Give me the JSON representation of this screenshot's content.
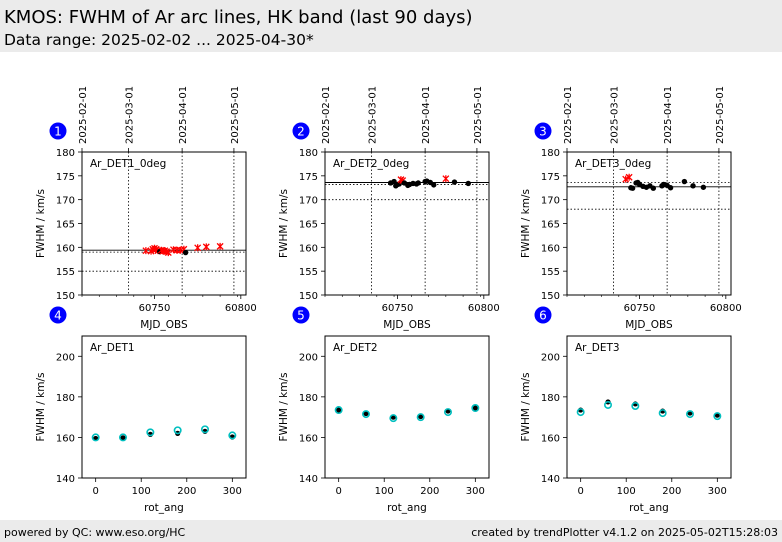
{
  "header": {
    "title": "KMOS: FWHM of Ar arc lines, HK band (last 90 days)",
    "subtitle": "Data range: 2025-02-02 ... 2025-04-30*"
  },
  "footer": {
    "left": "powered by QC: www.eso.org/HC",
    "right": "created by trendPlotter v4.1.2 on 2025-05-02T15:28:03"
  },
  "colors": {
    "header_bg": "#ebebeb",
    "badge": "#0000ff",
    "good_marker": "#000000",
    "outlier_marker": "#ff0000",
    "model_marker": "#00bfbf"
  },
  "chart_data": [
    {
      "type": "scatter",
      "badge": "1",
      "label": "Ar_DET1_0deg",
      "xlabel": "MJD_OBS",
      "ylabel": "FWHM / km/s",
      "xlim": [
        60708,
        60803
      ],
      "ylim": [
        150,
        180
      ],
      "xticks": [
        60750,
        60800
      ],
      "yticks": [
        150,
        155,
        160,
        165,
        170,
        175,
        180
      ],
      "date_ticks": [
        {
          "x": 60708,
          "label": "2025-02-01"
        },
        {
          "x": 60735,
          "label": "2025-03-01"
        },
        {
          "x": 60766,
          "label": "2025-04-01"
        },
        {
          "x": 60796,
          "label": "2025-05-01"
        }
      ],
      "ref_line": 159.4,
      "threshold_lines": [
        159.0,
        155.0
      ],
      "points": [
        {
          "x": 60745,
          "y": 159.3,
          "flag": "outlier"
        },
        {
          "x": 60748,
          "y": 159.2,
          "flag": "outlier"
        },
        {
          "x": 60749,
          "y": 159.6,
          "flag": "outlier"
        },
        {
          "x": 60750,
          "y": 159.8,
          "flag": "outlier"
        },
        {
          "x": 60751,
          "y": 159.6,
          "flag": "outlier"
        },
        {
          "x": 60752,
          "y": 159.3,
          "flag": "outlier"
        },
        {
          "x": 60753,
          "y": 159.1,
          "flag": "good"
        },
        {
          "x": 60754,
          "y": 159.4,
          "flag": "outlier"
        },
        {
          "x": 60755,
          "y": 159.2,
          "flag": "outlier"
        },
        {
          "x": 60756,
          "y": 159.3,
          "flag": "outlier"
        },
        {
          "x": 60757,
          "y": 159.1,
          "flag": "outlier"
        },
        {
          "x": 60758,
          "y": 158.9,
          "flag": "outlier"
        },
        {
          "x": 60761,
          "y": 159.5,
          "flag": "outlier"
        },
        {
          "x": 60763,
          "y": 159.4,
          "flag": "outlier"
        },
        {
          "x": 60765,
          "y": 159.4,
          "flag": "outlier"
        },
        {
          "x": 60767,
          "y": 159.6,
          "flag": "outlier"
        },
        {
          "x": 60768,
          "y": 158.9,
          "flag": "good"
        },
        {
          "x": 60775,
          "y": 159.9,
          "flag": "outlier"
        },
        {
          "x": 60780,
          "y": 160.1,
          "flag": "outlier"
        },
        {
          "x": 60788,
          "y": 160.2,
          "flag": "outlier"
        }
      ]
    },
    {
      "type": "scatter",
      "badge": "2",
      "label": "Ar_DET2_0deg",
      "xlabel": "MJD_OBS",
      "ylabel": "FWHM / km/s",
      "xlim": [
        60708,
        60803
      ],
      "ylim": [
        150,
        180
      ],
      "xticks": [
        60750,
        60800
      ],
      "yticks": [
        150,
        155,
        160,
        165,
        170,
        175,
        180
      ],
      "date_ticks": [
        {
          "x": 60708,
          "label": "2025-02-01"
        },
        {
          "x": 60735,
          "label": "2025-03-01"
        },
        {
          "x": 60766,
          "label": "2025-04-01"
        },
        {
          "x": 60796,
          "label": "2025-05-01"
        }
      ],
      "ref_line": 173.6,
      "threshold_lines": [
        173.2,
        170.0
      ],
      "points": [
        {
          "x": 60746,
          "y": 173.5,
          "flag": "good"
        },
        {
          "x": 60748,
          "y": 173.8,
          "flag": "good"
        },
        {
          "x": 60749,
          "y": 172.9,
          "flag": "good"
        },
        {
          "x": 60750,
          "y": 173.2,
          "flag": "good"
        },
        {
          "x": 60751,
          "y": 173.3,
          "flag": "good"
        },
        {
          "x": 60752,
          "y": 174.2,
          "flag": "outlier"
        },
        {
          "x": 60753,
          "y": 174.0,
          "flag": "outlier"
        },
        {
          "x": 60754,
          "y": 173.5,
          "flag": "good"
        },
        {
          "x": 60756,
          "y": 173.0,
          "flag": "good"
        },
        {
          "x": 60757,
          "y": 173.2,
          "flag": "good"
        },
        {
          "x": 60759,
          "y": 173.4,
          "flag": "good"
        },
        {
          "x": 60761,
          "y": 173.3,
          "flag": "good"
        },
        {
          "x": 60762,
          "y": 173.5,
          "flag": "good"
        },
        {
          "x": 60766,
          "y": 173.8,
          "flag": "good"
        },
        {
          "x": 60767,
          "y": 173.9,
          "flag": "good"
        },
        {
          "x": 60769,
          "y": 173.6,
          "flag": "good"
        },
        {
          "x": 60771,
          "y": 173.1,
          "flag": "good"
        },
        {
          "x": 60778,
          "y": 174.4,
          "flag": "outlier"
        },
        {
          "x": 60783,
          "y": 173.7,
          "flag": "good"
        },
        {
          "x": 60791,
          "y": 173.4,
          "flag": "good"
        }
      ]
    },
    {
      "type": "scatter",
      "badge": "3",
      "label": "Ar_DET3_0deg",
      "xlabel": "MJD_OBS",
      "ylabel": "FWHM / km/s",
      "xlim": [
        60708,
        60803
      ],
      "ylim": [
        150,
        180
      ],
      "xticks": [
        60750,
        60800
      ],
      "yticks": [
        150,
        155,
        160,
        165,
        170,
        175,
        180
      ],
      "date_ticks": [
        {
          "x": 60708,
          "label": "2025-02-01"
        },
        {
          "x": 60735,
          "label": "2025-03-01"
        },
        {
          "x": 60766,
          "label": "2025-04-01"
        },
        {
          "x": 60796,
          "label": "2025-05-01"
        }
      ],
      "ref_line": 172.7,
      "threshold_lines": [
        173.6,
        168.0
      ],
      "points": [
        {
          "x": 60742,
          "y": 174.3,
          "flag": "outlier"
        },
        {
          "x": 60744,
          "y": 174.7,
          "flag": "outlier"
        },
        {
          "x": 60745,
          "y": 172.5,
          "flag": "good"
        },
        {
          "x": 60746,
          "y": 172.4,
          "flag": "good"
        },
        {
          "x": 60748,
          "y": 173.5,
          "flag": "good"
        },
        {
          "x": 60749,
          "y": 173.6,
          "flag": "good"
        },
        {
          "x": 60750,
          "y": 173.2,
          "flag": "good"
        },
        {
          "x": 60752,
          "y": 172.8,
          "flag": "good"
        },
        {
          "x": 60754,
          "y": 172.6,
          "flag": "good"
        },
        {
          "x": 60756,
          "y": 172.9,
          "flag": "good"
        },
        {
          "x": 60758,
          "y": 172.4,
          "flag": "good"
        },
        {
          "x": 60763,
          "y": 172.9,
          "flag": "good"
        },
        {
          "x": 60764,
          "y": 173.2,
          "flag": "good"
        },
        {
          "x": 60766,
          "y": 173.0,
          "flag": "good"
        },
        {
          "x": 60768,
          "y": 172.5,
          "flag": "good"
        },
        {
          "x": 60776,
          "y": 173.8,
          "flag": "good"
        },
        {
          "x": 60781,
          "y": 172.9,
          "flag": "good"
        },
        {
          "x": 60787,
          "y": 172.6,
          "flag": "good"
        }
      ]
    },
    {
      "type": "scatter",
      "badge": "4",
      "label": "Ar_DET1",
      "xlabel": "rot_ang",
      "ylabel": "FWHM / km/s",
      "xlim": [
        -30,
        330
      ],
      "ylim": [
        140,
        210
      ],
      "xticks": [
        0,
        100,
        200,
        300
      ],
      "yticks": [
        140,
        160,
        180,
        200
      ],
      "points": [
        {
          "x": 0,
          "y_meas": 159.5,
          "y_model": 160.0
        },
        {
          "x": 60,
          "y_meas": 159.8,
          "y_model": 160.0
        },
        {
          "x": 120,
          "y_meas": 161.5,
          "y_model": 162.5
        },
        {
          "x": 180,
          "y_meas": 162.0,
          "y_model": 163.5
        },
        {
          "x": 240,
          "y_meas": 163.0,
          "y_model": 164.0
        },
        {
          "x": 300,
          "y_meas": 160.2,
          "y_model": 161.0
        }
      ]
    },
    {
      "type": "scatter",
      "badge": "5",
      "label": "Ar_DET2",
      "xlabel": "rot_ang",
      "ylabel": "FWHM / km/s",
      "xlim": [
        -30,
        330
      ],
      "ylim": [
        140,
        210
      ],
      "xticks": [
        0,
        100,
        200,
        300
      ],
      "yticks": [
        140,
        160,
        180,
        200
      ],
      "points": [
        {
          "x": 0,
          "y_meas": 173.5,
          "y_model": 173.5
        },
        {
          "x": 60,
          "y_meas": 171.8,
          "y_model": 171.5
        },
        {
          "x": 120,
          "y_meas": 170.0,
          "y_model": 169.5
        },
        {
          "x": 180,
          "y_meas": 170.3,
          "y_model": 170.0
        },
        {
          "x": 240,
          "y_meas": 173.0,
          "y_model": 172.5
        },
        {
          "x": 300,
          "y_meas": 174.5,
          "y_model": 174.5
        }
      ]
    },
    {
      "type": "scatter",
      "badge": "6",
      "label": "Ar_DET3",
      "xlabel": "rot_ang",
      "ylabel": "FWHM / km/s",
      "xlim": [
        -30,
        330
      ],
      "ylim": [
        140,
        210
      ],
      "xticks": [
        0,
        100,
        200,
        300
      ],
      "yticks": [
        140,
        160,
        180,
        200
      ],
      "points": [
        {
          "x": 0,
          "y_meas": 173.5,
          "y_model": 172.5
        },
        {
          "x": 60,
          "y_meas": 177.5,
          "y_model": 176.0
        },
        {
          "x": 120,
          "y_meas": 176.5,
          "y_model": 175.5
        },
        {
          "x": 180,
          "y_meas": 173.0,
          "y_model": 172.0
        },
        {
          "x": 240,
          "y_meas": 172.0,
          "y_model": 171.5
        },
        {
          "x": 300,
          "y_meas": 171.0,
          "y_model": 170.5
        }
      ]
    }
  ]
}
